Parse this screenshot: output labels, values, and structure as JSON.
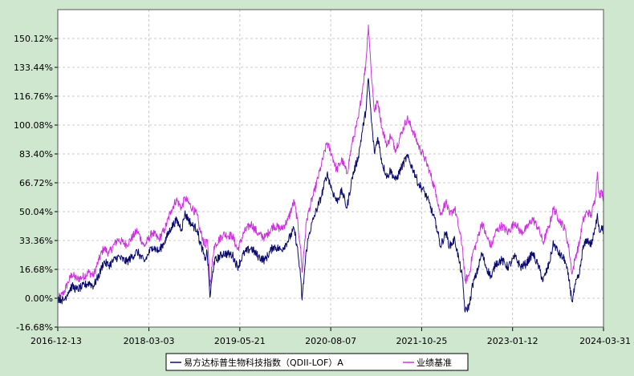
{
  "chart_data": {
    "type": "line",
    "title": "",
    "xlabel": "",
    "ylabel": "",
    "grid": true,
    "legend_position": "bottom",
    "x_ticks": [
      "2016-12-13",
      "2018-03-03",
      "2019-05-21",
      "2020-08-07",
      "2021-10-25",
      "2023-01-12",
      "2024-03-31"
    ],
    "y_ticks": [
      "-16.68%",
      "0.00%",
      "16.68%",
      "33.36%",
      "50.04%",
      "66.72%",
      "83.40%",
      "100.08%",
      "116.76%",
      "133.44%",
      "150.12%"
    ],
    "ylim": [
      -16.68,
      166.8
    ],
    "colors": {
      "fund": "#0a0a6e",
      "benchmark": "#cc33dd"
    },
    "series": [
      {
        "name": "易方达标普生物科技指数（QDII-LOF）A",
        "color": "#0a0a6e",
        "points": [
          [
            "2016-12-13",
            0.0
          ],
          [
            "2016-12-28",
            -0.5
          ],
          [
            "2017-01-10",
            -1.5
          ],
          [
            "2017-02-01",
            3.5
          ],
          [
            "2017-02-20",
            7.0
          ],
          [
            "2017-03-15",
            5.0
          ],
          [
            "2017-04-10",
            6.5
          ],
          [
            "2017-05-15",
            9.0
          ],
          [
            "2017-06-05",
            7.0
          ],
          [
            "2017-07-01",
            13.0
          ],
          [
            "2017-07-25",
            21.0
          ],
          [
            "2017-08-20",
            19.0
          ],
          [
            "2017-10-01",
            24.0
          ],
          [
            "2017-11-15",
            21.0
          ],
          [
            "2018-01-05",
            27.0
          ],
          [
            "2018-02-08",
            21.0
          ],
          [
            "2018-03-20",
            30.0
          ],
          [
            "2018-04-20",
            27.0
          ],
          [
            "2018-05-20",
            33.0
          ],
          [
            "2018-06-20",
            41.0
          ],
          [
            "2018-07-15",
            45.0
          ],
          [
            "2018-08-10",
            40.0
          ],
          [
            "2018-08-25",
            49.0
          ],
          [
            "2018-10-01",
            42.0
          ],
          [
            "2018-10-25",
            40.0
          ],
          [
            "2018-11-05",
            33.0
          ],
          [
            "2018-11-20",
            28.0
          ],
          [
            "2018-12-01",
            22.0
          ],
          [
            "2018-12-12",
            27.0
          ],
          [
            "2018-12-20",
            14.0
          ],
          [
            "2018-12-26",
            0.5
          ],
          [
            "2019-01-15",
            21.0
          ],
          [
            "2019-03-01",
            26.0
          ],
          [
            "2019-04-15",
            25.0
          ],
          [
            "2019-05-10",
            18.0
          ],
          [
            "2019-06-10",
            26.0
          ],
          [
            "2019-07-15",
            29.0
          ],
          [
            "2019-08-20",
            24.0
          ],
          [
            "2019-09-20",
            22.0
          ],
          [
            "2019-11-01",
            30.0
          ],
          [
            "2019-12-10",
            28.0
          ],
          [
            "2020-01-10",
            33.0
          ],
          [
            "2020-02-10",
            40.0
          ],
          [
            "2020-02-25",
            30.0
          ],
          [
            "2020-03-12",
            13.0
          ],
          [
            "2020-03-20",
            -1.0
          ],
          [
            "2020-04-10",
            28.0
          ],
          [
            "2020-04-25",
            38.0
          ],
          [
            "2020-05-20",
            48.0
          ],
          [
            "2020-06-20",
            58.0
          ],
          [
            "2020-07-20",
            72.0
          ],
          [
            "2020-08-15",
            62.0
          ],
          [
            "2020-09-05",
            56.0
          ],
          [
            "2020-10-01",
            62.0
          ],
          [
            "2020-10-25",
            52.0
          ],
          [
            "2020-11-20",
            70.0
          ],
          [
            "2020-12-20",
            82.0
          ],
          [
            "2021-01-10",
            98.0
          ],
          [
            "2021-01-25",
            108.0
          ],
          [
            "2021-02-07",
            127.0
          ],
          [
            "2021-02-20",
            105.0
          ],
          [
            "2021-03-08",
            84.0
          ],
          [
            "2021-03-25",
            93.0
          ],
          [
            "2021-04-15",
            78.0
          ],
          [
            "2021-05-10",
            70.0
          ],
          [
            "2021-05-25",
            74.0
          ],
          [
            "2021-06-20",
            68.0
          ],
          [
            "2021-07-20",
            76.0
          ],
          [
            "2021-08-15",
            82.0
          ],
          [
            "2021-09-15",
            74.0
          ],
          [
            "2021-10-10",
            66.0
          ],
          [
            "2021-11-05",
            62.0
          ],
          [
            "2021-12-01",
            55.0
          ],
          [
            "2022-01-05",
            42.0
          ],
          [
            "2022-01-25",
            30.0
          ],
          [
            "2022-02-20",
            38.0
          ],
          [
            "2022-03-10",
            30.0
          ],
          [
            "2022-04-05",
            34.0
          ],
          [
            "2022-04-25",
            22.0
          ],
          [
            "2022-05-12",
            12.0
          ],
          [
            "2022-05-25",
            -8.0
          ],
          [
            "2022-06-15",
            -4.0
          ],
          [
            "2022-07-01",
            8.0
          ],
          [
            "2022-07-20",
            14.0
          ],
          [
            "2022-08-15",
            26.0
          ],
          [
            "2022-09-05",
            18.0
          ],
          [
            "2022-10-01",
            12.0
          ],
          [
            "2022-10-20",
            20.0
          ],
          [
            "2022-11-20",
            22.0
          ],
          [
            "2022-12-20",
            18.0
          ],
          [
            "2023-01-25",
            24.0
          ],
          [
            "2023-02-20",
            18.0
          ],
          [
            "2023-03-20",
            20.0
          ],
          [
            "2023-04-20",
            26.0
          ],
          [
            "2023-05-20",
            18.0
          ],
          [
            "2023-06-10",
            10.0
          ],
          [
            "2023-07-10",
            20.0
          ],
          [
            "2023-07-31",
            32.0
          ],
          [
            "2023-08-25",
            26.0
          ],
          [
            "2023-09-25",
            22.0
          ],
          [
            "2023-10-15",
            10.0
          ],
          [
            "2023-10-30",
            -2.0
          ],
          [
            "2023-11-15",
            8.0
          ],
          [
            "2023-12-05",
            14.0
          ],
          [
            "2023-12-20",
            28.0
          ],
          [
            "2024-01-10",
            34.0
          ],
          [
            "2024-01-31",
            31.0
          ],
          [
            "2024-02-20",
            40.0
          ],
          [
            "2024-03-01",
            49.0
          ],
          [
            "2024-03-12",
            38.0
          ],
          [
            "2024-03-22",
            42.0
          ],
          [
            "2024-03-31",
            38.0
          ]
        ]
      },
      {
        "name": "业绩基准",
        "color": "#cc33dd",
        "points": [
          [
            "2016-12-13",
            0.0
          ],
          [
            "2016-12-28",
            1.0
          ],
          [
            "2017-01-10",
            3.0
          ],
          [
            "2017-02-01",
            9.0
          ],
          [
            "2017-02-20",
            14.0
          ],
          [
            "2017-03-15",
            11.0
          ],
          [
            "2017-04-10",
            12.0
          ],
          [
            "2017-05-15",
            15.0
          ],
          [
            "2017-06-05",
            13.0
          ],
          [
            "2017-07-01",
            22.0
          ],
          [
            "2017-07-25",
            29.0
          ],
          [
            "2017-08-20",
            26.0
          ],
          [
            "2017-10-01",
            34.0
          ],
          [
            "2017-11-15",
            31.0
          ],
          [
            "2018-01-05",
            39.0
          ],
          [
            "2018-02-08",
            30.0
          ],
          [
            "2018-03-20",
            38.0
          ],
          [
            "2018-04-20",
            34.0
          ],
          [
            "2018-05-20",
            40.0
          ],
          [
            "2018-06-20",
            51.0
          ],
          [
            "2018-07-15",
            57.0
          ],
          [
            "2018-08-10",
            52.0
          ],
          [
            "2018-08-25",
            58.0
          ],
          [
            "2018-10-01",
            52.0
          ],
          [
            "2018-10-25",
            48.0
          ],
          [
            "2018-11-05",
            40.0
          ],
          [
            "2018-11-20",
            35.0
          ],
          [
            "2018-12-01",
            30.0
          ],
          [
            "2018-12-12",
            34.0
          ],
          [
            "2018-12-20",
            22.0
          ],
          [
            "2018-12-26",
            7.0
          ],
          [
            "2019-01-15",
            30.0
          ],
          [
            "2019-03-01",
            37.0
          ],
          [
            "2019-04-15",
            36.0
          ],
          [
            "2019-05-10",
            28.0
          ],
          [
            "2019-06-10",
            38.0
          ],
          [
            "2019-07-15",
            43.0
          ],
          [
            "2019-08-20",
            37.0
          ],
          [
            "2019-09-20",
            35.0
          ],
          [
            "2019-11-01",
            42.0
          ],
          [
            "2019-12-10",
            40.0
          ],
          [
            "2020-01-10",
            45.0
          ],
          [
            "2020-02-10",
            56.0
          ],
          [
            "2020-02-25",
            46.0
          ],
          [
            "2020-03-12",
            30.0
          ],
          [
            "2020-03-20",
            15.0
          ],
          [
            "2020-04-10",
            44.0
          ],
          [
            "2020-04-25",
            52.0
          ],
          [
            "2020-05-20",
            62.0
          ],
          [
            "2020-06-20",
            76.0
          ],
          [
            "2020-07-20",
            90.0
          ],
          [
            "2020-08-15",
            82.0
          ],
          [
            "2020-09-05",
            74.0
          ],
          [
            "2020-10-01",
            80.0
          ],
          [
            "2020-10-25",
            72.0
          ],
          [
            "2020-11-20",
            90.0
          ],
          [
            "2020-12-20",
            104.0
          ],
          [
            "2021-01-10",
            122.0
          ],
          [
            "2021-01-25",
            135.0
          ],
          [
            "2021-02-07",
            158.0
          ],
          [
            "2021-02-20",
            132.0
          ],
          [
            "2021-03-08",
            108.0
          ],
          [
            "2021-03-25",
            114.0
          ],
          [
            "2021-04-15",
            98.0
          ],
          [
            "2021-05-10",
            88.0
          ],
          [
            "2021-05-25",
            94.0
          ],
          [
            "2021-06-20",
            86.0
          ],
          [
            "2021-07-20",
            96.0
          ],
          [
            "2021-08-15",
            104.0
          ],
          [
            "2021-09-15",
            96.0
          ],
          [
            "2021-10-10",
            88.0
          ],
          [
            "2021-11-05",
            82.0
          ],
          [
            "2021-12-01",
            74.0
          ],
          [
            "2022-01-05",
            60.0
          ],
          [
            "2022-01-25",
            48.0
          ],
          [
            "2022-02-20",
            56.0
          ],
          [
            "2022-03-10",
            48.0
          ],
          [
            "2022-04-05",
            52.0
          ],
          [
            "2022-04-25",
            40.0
          ],
          [
            "2022-05-12",
            30.0
          ],
          [
            "2022-05-25",
            10.0
          ],
          [
            "2022-06-15",
            14.0
          ],
          [
            "2022-07-01",
            26.0
          ],
          [
            "2022-07-20",
            32.0
          ],
          [
            "2022-08-15",
            44.0
          ],
          [
            "2022-09-05",
            36.0
          ],
          [
            "2022-10-01",
            30.0
          ],
          [
            "2022-10-20",
            38.0
          ],
          [
            "2022-11-20",
            42.0
          ],
          [
            "2022-12-20",
            38.0
          ],
          [
            "2023-01-25",
            44.0
          ],
          [
            "2023-02-20",
            38.0
          ],
          [
            "2023-03-20",
            40.0
          ],
          [
            "2023-04-20",
            46.0
          ],
          [
            "2023-05-20",
            40.0
          ],
          [
            "2023-06-10",
            32.0
          ],
          [
            "2023-07-10",
            42.0
          ],
          [
            "2023-07-31",
            52.0
          ],
          [
            "2023-08-25",
            46.0
          ],
          [
            "2023-09-25",
            40.0
          ],
          [
            "2023-10-15",
            28.0
          ],
          [
            "2023-10-30",
            14.0
          ],
          [
            "2023-11-15",
            24.0
          ],
          [
            "2023-12-05",
            32.0
          ],
          [
            "2023-12-20",
            44.0
          ],
          [
            "2024-01-10",
            50.0
          ],
          [
            "2024-01-31",
            48.0
          ],
          [
            "2024-02-20",
            58.0
          ],
          [
            "2024-03-01",
            73.0
          ],
          [
            "2024-03-12",
            58.0
          ],
          [
            "2024-03-22",
            62.0
          ],
          [
            "2024-03-31",
            58.0
          ]
        ]
      }
    ]
  }
}
